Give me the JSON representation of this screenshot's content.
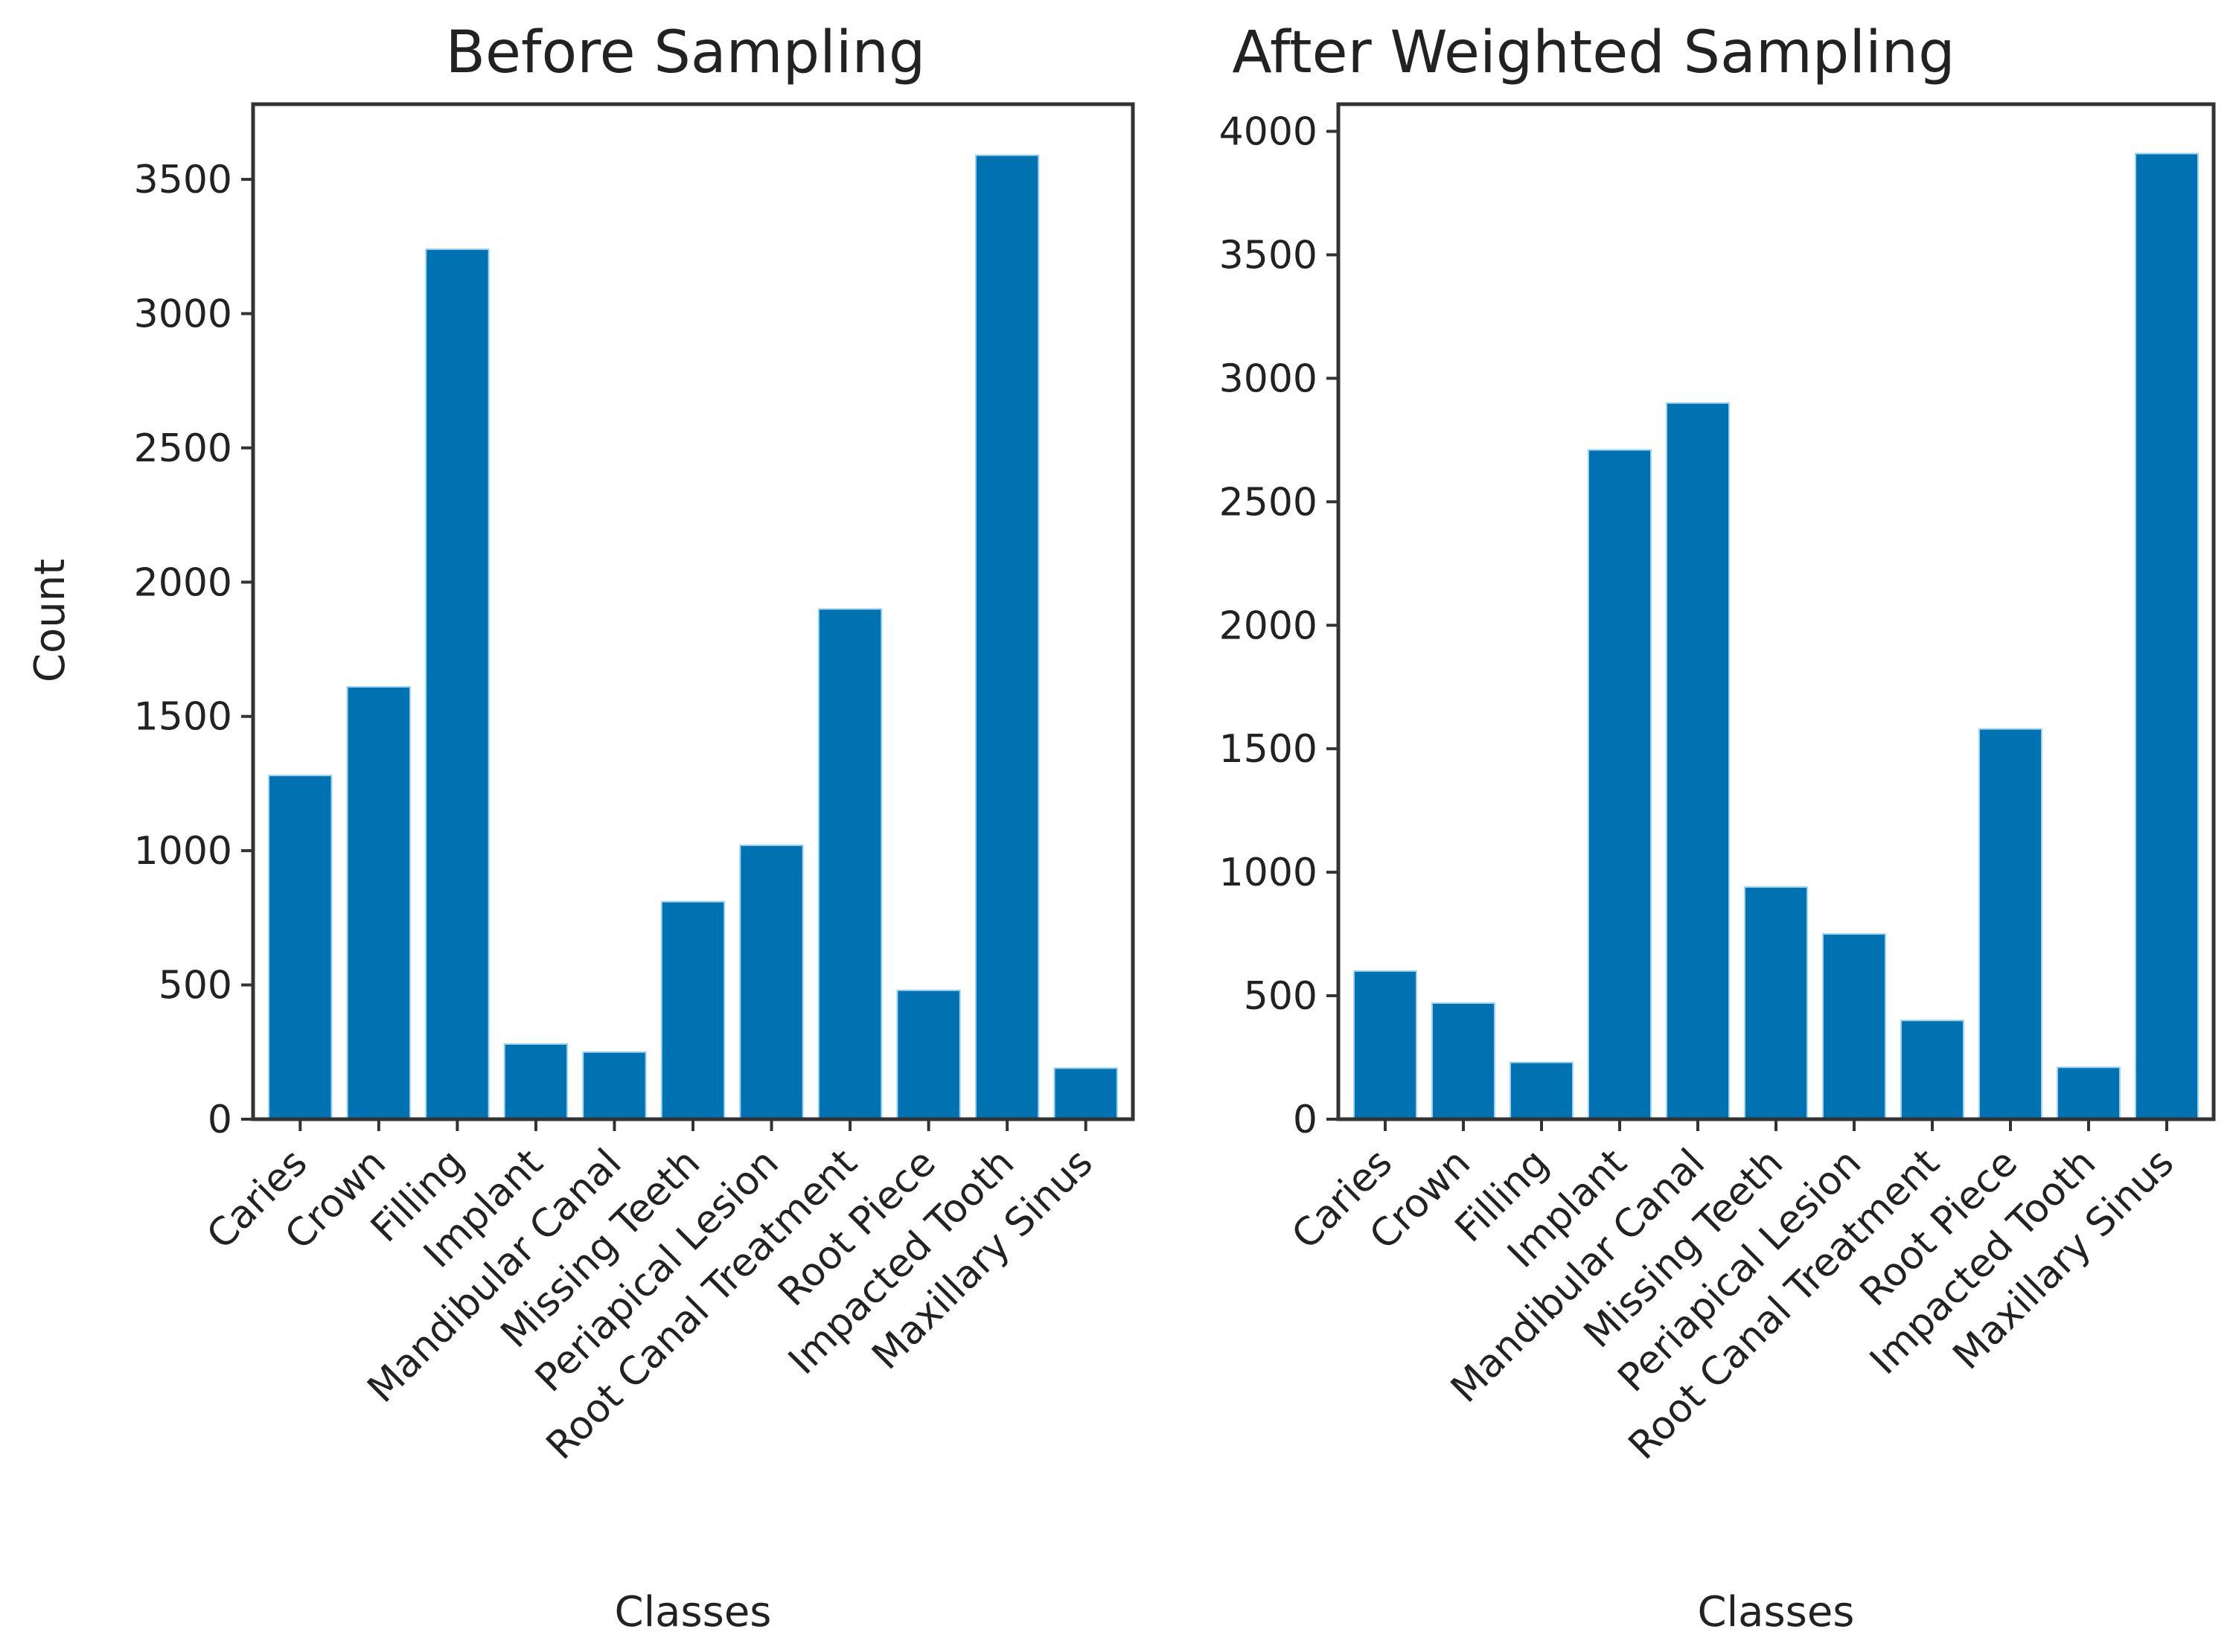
{
  "chart_data": [
    {
      "type": "bar",
      "title": "Before Sampling",
      "xlabel": "Classes",
      "ylabel": "Count",
      "categories": [
        "Caries",
        "Crown",
        "Filling",
        "Implant",
        "Mandibular Canal",
        "Missing Teeth",
        "Periapical Lesion",
        "Root Canal Treatment",
        "Root Piece",
        "Impacted Tooth",
        "Maxillary Sinus"
      ],
      "values": [
        1280,
        1610,
        3240,
        280,
        250,
        810,
        1020,
        1900,
        480,
        3590,
        190
      ],
      "yticks": [
        0,
        500,
        1000,
        1500,
        2000,
        2500,
        3000,
        3500
      ],
      "ylim": [
        0,
        3780
      ],
      "grid": false,
      "bar_color": "#0072b2"
    },
    {
      "type": "bar",
      "title": "After Weighted Sampling",
      "xlabel": "Classes",
      "ylabel": "",
      "categories": [
        "Caries",
        "Crown",
        "Filling",
        "Implant",
        "Mandibular Canal",
        "Missing Teeth",
        "Periapical Lesion",
        "Root Canal Treatment",
        "Root Piece",
        "Impacted Tooth",
        "Maxillary Sinus"
      ],
      "values": [
        600,
        470,
        230,
        2710,
        2900,
        940,
        750,
        400,
        1580,
        210,
        3910
      ],
      "yticks": [
        0,
        500,
        1000,
        1500,
        2000,
        2500,
        3000,
        3500,
        4000
      ],
      "ylim": [
        0,
        4110
      ],
      "grid": false,
      "bar_color": "#0072b2"
    }
  ]
}
